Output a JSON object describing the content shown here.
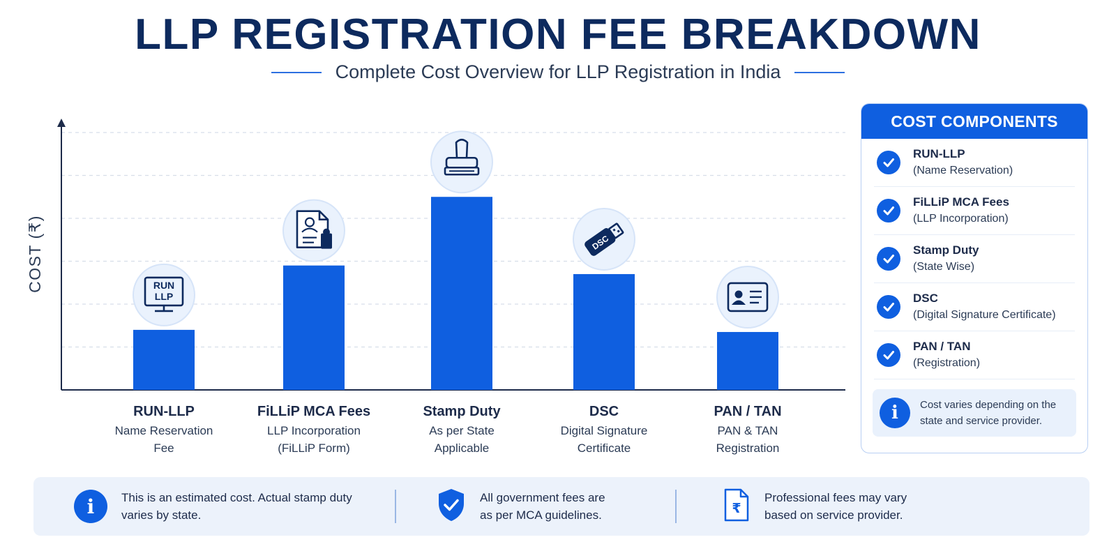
{
  "header": {
    "title": "LLP REGISTRATION FEE BREAKDOWN",
    "subtitle": "Complete Cost Overview for LLP Registration in India"
  },
  "colors": {
    "accent": "#0f5fe0",
    "bar": "#0f5fe0",
    "title": "#0d2a5e",
    "icon_bg": "#eaf2fd",
    "panel_note_bg": "#e9f1fc"
  },
  "chart_data": {
    "type": "bar",
    "ylabel": "COST (₹)",
    "xlabel": "",
    "y_ticks_shown": false,
    "grid": "horizontal dashed",
    "ylim": [
      0,
      6
    ],
    "categories": [
      "RUN-LLP",
      "FiLLiP MCA Fees",
      "Stamp Duty",
      "DSC",
      "PAN / TAN"
    ],
    "category_details": [
      [
        "Name Reservation",
        "Fee"
      ],
      [
        "LLP Incorporation",
        "(FiLLiP Form)"
      ],
      [
        "As per State",
        "Applicable"
      ],
      [
        "Digital Signature",
        "Certificate"
      ],
      [
        "PAN & TAN",
        "Registration"
      ]
    ],
    "icons": [
      "run-llp-monitor-icon",
      "document-emblem-icon",
      "rubber-stamp-icon",
      "usb-dsc-token-icon",
      "id-card-icon"
    ],
    "icon_text": [
      "RUN\nLLP",
      "",
      "",
      "DSC",
      ""
    ],
    "values": [
      1.4,
      2.9,
      4.5,
      2.7,
      1.35
    ]
  },
  "side_panel": {
    "heading": "COST COMPONENTS",
    "items": [
      {
        "title": "RUN-LLP",
        "subtitle": "(Name Reservation)"
      },
      {
        "title": "FiLLiP MCA Fees",
        "subtitle": "(LLP Incorporation)"
      },
      {
        "title": "Stamp Duty",
        "subtitle": "(State Wise)"
      },
      {
        "title": "DSC",
        "subtitle": "(Digital Signature Certificate)"
      },
      {
        "title": "PAN / TAN",
        "subtitle": "(Registration)"
      }
    ],
    "note": {
      "icon": "info-icon",
      "text": "Cost varies depending on the state and service provider."
    }
  },
  "footer": {
    "items": [
      {
        "icon": "info-icon",
        "line1": "This is an estimated cost. Actual stamp duty",
        "line2": "varies by state."
      },
      {
        "icon": "shield-check-icon",
        "line1": "All government fees are",
        "line2": "as per MCA guidelines."
      },
      {
        "icon": "rupee-document-icon",
        "line1": "Professional fees may vary",
        "line2": "based on service provider."
      }
    ]
  }
}
